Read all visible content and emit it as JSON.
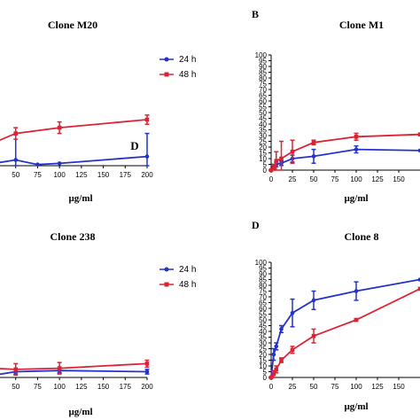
{
  "colors": {
    "series_24h": "#2233cc",
    "series_48h": "#dd2233",
    "axis": "#000000"
  },
  "chart_data": [
    {
      "type": "line",
      "title": "Clone M20",
      "xlabel": "µg/ml",
      "ylabel": "",
      "x_ticks": [
        "50",
        "75",
        "100",
        "125",
        "150",
        "175",
        "200"
      ],
      "x_tick_first_partial": "25",
      "xlim": [
        25,
        200
      ],
      "ylim": [
        0,
        100
      ],
      "legend": [
        "24 h",
        "48 h"
      ],
      "legend_position": "top-right",
      "annotation": "D",
      "series": [
        {
          "name": "24 h",
          "x": [
            25,
            50,
            75,
            100,
            200
          ],
          "y": [
            2,
            5,
            1,
            2,
            8
          ],
          "err": [
            0,
            22,
            0,
            0,
            20
          ]
        },
        {
          "name": "48 h",
          "x": [
            25,
            50,
            100,
            200
          ],
          "y": [
            20,
            28,
            33,
            40
          ],
          "err": [
            0,
            5,
            5,
            4
          ]
        }
      ]
    },
    {
      "type": "line",
      "panel": "B",
      "title": "Clone M1",
      "xlabel": "µg/ml",
      "ylabel": "",
      "y_ticks": [
        "0",
        "5",
        "10",
        "15",
        "20",
        "25",
        "30",
        "35",
        "40",
        "45",
        "50",
        "55",
        "60",
        "65",
        "70",
        "75",
        "80",
        "85",
        "90",
        "95",
        "100"
      ],
      "x_ticks": [
        "0",
        "25",
        "50",
        "75",
        "100",
        "125",
        "150"
      ],
      "xlim": [
        0,
        175
      ],
      "ylim": [
        0,
        100
      ],
      "series": [
        {
          "name": "24 h",
          "x": [
            0,
            3,
            6,
            12,
            25,
            50,
            100,
            175
          ],
          "y": [
            0,
            3,
            5,
            6,
            10,
            12,
            18,
            17
          ],
          "err": [
            0,
            2,
            2,
            2,
            3,
            6,
            3,
            0
          ]
        },
        {
          "name": "48 h",
          "x": [
            0,
            3,
            6,
            12,
            25,
            50,
            100,
            175
          ],
          "y": [
            0,
            2,
            8,
            10,
            16,
            24,
            29,
            31
          ],
          "err": [
            0,
            3,
            8,
            15,
            10,
            2,
            3,
            0
          ]
        }
      ]
    },
    {
      "type": "line",
      "title": "Clone 238",
      "xlabel": "µg/ml",
      "ylabel": "",
      "x_ticks": [
        "50",
        "75",
        "100",
        "125",
        "150",
        "175",
        "200"
      ],
      "x_tick_first_partial": "25",
      "xlim": [
        25,
        200
      ],
      "ylim": [
        0,
        100
      ],
      "legend": [
        "24 h",
        "48 h"
      ],
      "legend_position": "top-right",
      "series": [
        {
          "name": "24 h",
          "x": [
            25,
            50,
            100,
            200
          ],
          "y": [
            2,
            5,
            6,
            5
          ],
          "err": [
            0,
            2,
            2,
            2
          ]
        },
        {
          "name": "48 h",
          "x": [
            25,
            50,
            100,
            200
          ],
          "y": [
            8,
            7,
            8,
            12
          ],
          "err": [
            0,
            5,
            5,
            3
          ]
        }
      ]
    },
    {
      "type": "line",
      "panel": "D",
      "title": "Clone 8",
      "xlabel": "µg/ml",
      "ylabel": "",
      "y_ticks": [
        "0",
        "5",
        "10",
        "15",
        "20",
        "25",
        "30",
        "35",
        "40",
        "45",
        "50",
        "55",
        "60",
        "65",
        "70",
        "75",
        "80",
        "85",
        "90",
        "95",
        "100"
      ],
      "x_ticks": [
        "0",
        "25",
        "50",
        "75",
        "100",
        "125",
        "150"
      ],
      "xlim": [
        0,
        175
      ],
      "ylim": [
        0,
        100
      ],
      "series": [
        {
          "name": "24 h",
          "x": [
            0,
            3,
            6,
            12,
            25,
            50,
            100,
            175
          ],
          "y": [
            0,
            20,
            27,
            42,
            56,
            67,
            75,
            85
          ],
          "err": [
            0,
            5,
            3,
            3,
            12,
            8,
            8,
            0
          ]
        },
        {
          "name": "48 h",
          "x": [
            0,
            3,
            6,
            12,
            25,
            50,
            100,
            175
          ],
          "y": [
            0,
            3,
            7,
            15,
            24,
            36,
            50,
            77
          ],
          "err": [
            0,
            3,
            3,
            2,
            3,
            6,
            1,
            0
          ]
        }
      ]
    }
  ]
}
